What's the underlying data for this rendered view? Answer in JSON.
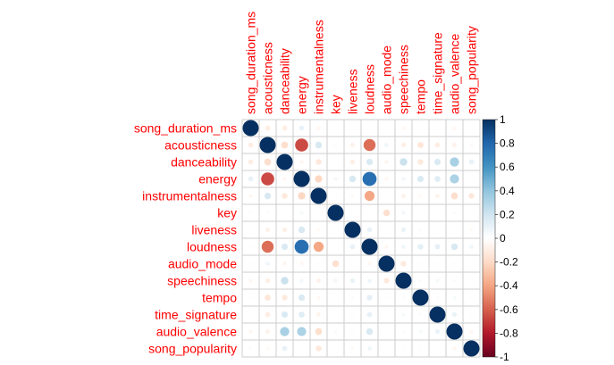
{
  "chart_data": {
    "type": "heatmap",
    "variables": [
      "song_duration_ms",
      "acousticness",
      "danceability",
      "energy",
      "instrumentalness",
      "key",
      "liveness",
      "loudness",
      "audio_mode",
      "speechiness",
      "tempo",
      "time_signature",
      "audio_valence",
      "song_popularity"
    ],
    "matrix": [
      [
        1.0,
        -0.1,
        -0.1,
        0.1,
        -0.05,
        -0.03,
        0.0,
        0.02,
        -0.02,
        -0.05,
        -0.02,
        0.0,
        -0.05,
        -0.03
      ],
      [
        -0.1,
        1.0,
        -0.18,
        -0.66,
        0.17,
        -0.03,
        -0.08,
        -0.56,
        0.07,
        -0.09,
        -0.14,
        -0.1,
        -0.08,
        -0.04
      ],
      [
        -0.1,
        -0.18,
        1.0,
        -0.05,
        -0.13,
        0.0,
        -0.09,
        0.16,
        -0.06,
        0.22,
        -0.12,
        0.16,
        0.33,
        0.1
      ],
      [
        0.1,
        -0.66,
        -0.05,
        1.0,
        -0.21,
        0.05,
        0.17,
        0.76,
        -0.05,
        0.06,
        0.16,
        0.14,
        0.32,
        0.0
      ],
      [
        -0.05,
        0.17,
        -0.13,
        -0.21,
        1.0,
        -0.02,
        -0.04,
        -0.39,
        -0.02,
        -0.08,
        -0.04,
        -0.07,
        -0.18,
        -0.13
      ],
      [
        -0.03,
        -0.03,
        0.0,
        0.05,
        -0.02,
        1.0,
        0.0,
        0.01,
        -0.17,
        0.06,
        0.0,
        0.0,
        0.03,
        -0.01
      ],
      [
        0.0,
        -0.08,
        -0.09,
        0.17,
        -0.04,
        0.0,
        1.0,
        0.1,
        0.0,
        0.09,
        0.03,
        0.02,
        0.02,
        -0.04
      ],
      [
        0.02,
        -0.56,
        0.16,
        0.76,
        -0.39,
        0.01,
        0.1,
        1.0,
        -0.05,
        0.07,
        0.12,
        0.11,
        0.17,
        0.07
      ],
      [
        -0.02,
        0.07,
        -0.06,
        -0.05,
        -0.02,
        -0.17,
        0.0,
        -0.05,
        1.0,
        -0.12,
        0.02,
        -0.02,
        -0.02,
        0.0
      ],
      [
        -0.05,
        -0.09,
        0.22,
        0.06,
        -0.08,
        0.06,
        0.09,
        0.07,
        -0.12,
        1.0,
        0.03,
        0.05,
        0.03,
        -0.02
      ],
      [
        -0.02,
        -0.14,
        -0.12,
        0.16,
        -0.04,
        0.0,
        0.03,
        0.12,
        0.02,
        0.03,
        1.0,
        -0.03,
        0.05,
        -0.02
      ],
      [
        0.0,
        -0.1,
        0.16,
        0.14,
        -0.07,
        0.0,
        0.02,
        0.11,
        -0.02,
        0.05,
        -0.03,
        1.0,
        0.09,
        0.02
      ],
      [
        -0.05,
        -0.08,
        0.33,
        0.32,
        -0.18,
        0.03,
        0.02,
        0.17,
        -0.02,
        0.03,
        0.05,
        0.09,
        1.0,
        -0.05
      ],
      [
        -0.03,
        -0.04,
        0.1,
        0.0,
        -0.13,
        -0.01,
        -0.04,
        0.07,
        0.0,
        -0.02,
        -0.02,
        0.02,
        -0.05,
        1.0
      ]
    ],
    "colorbar": {
      "ticks": [
        "1",
        "0.8",
        "0.6",
        "0.4",
        "0.2",
        "0",
        "-0.2",
        "-0.4",
        "-0.6",
        "-0.8",
        "-1"
      ],
      "range": [
        -1,
        1
      ],
      "colors": [
        "#67001f",
        "#b2182b",
        "#d6604d",
        "#f4a582",
        "#fddbc7",
        "#ffffff",
        "#d1e5f0",
        "#92c5de",
        "#4393c3",
        "#2166ac",
        "#053061"
      ]
    },
    "colors": {
      "label": "#ff0000",
      "grid": "#cccccc"
    },
    "grid": true,
    "legend_position": "right"
  }
}
